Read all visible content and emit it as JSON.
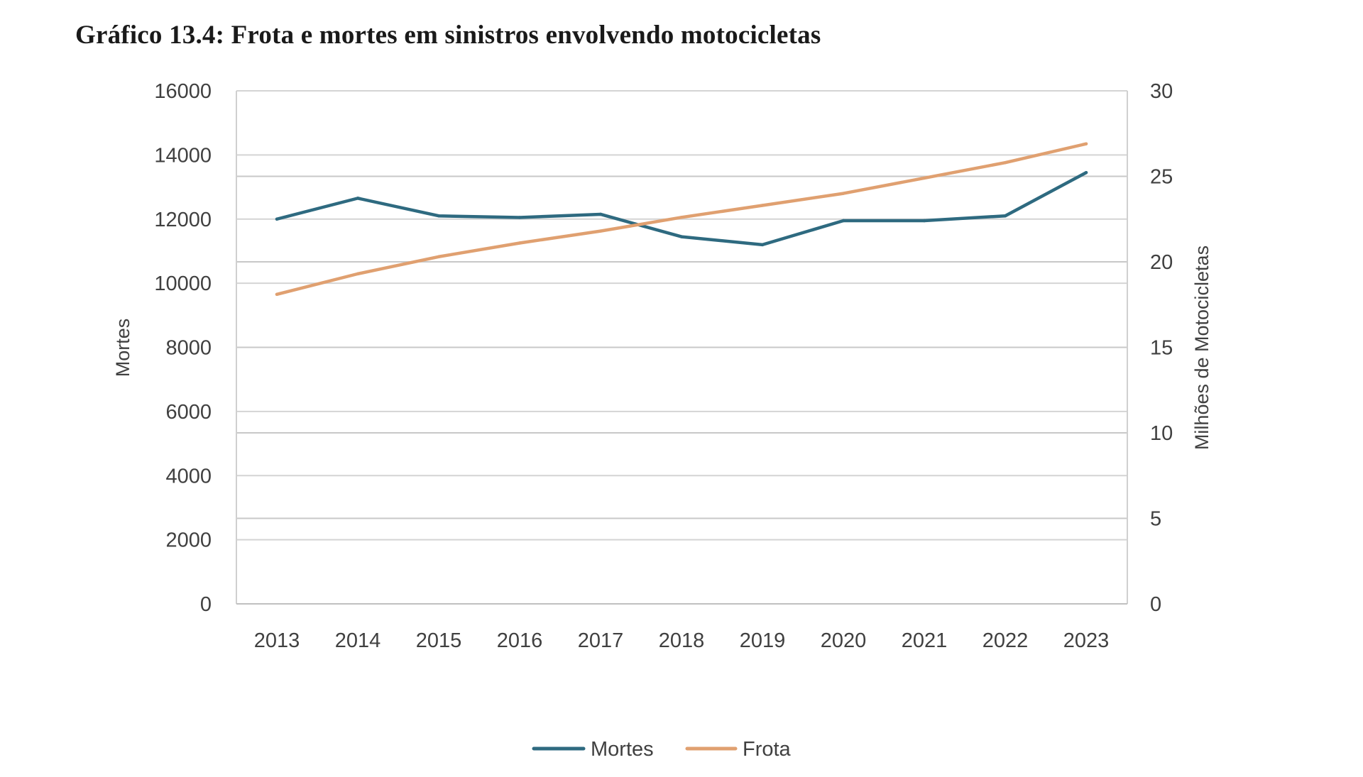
{
  "chart_data": {
    "type": "line",
    "title": "Gráfico 13.4: Frota e mortes em sinistros envolvendo motocicletas",
    "categories": [
      "2013",
      "2014",
      "2015",
      "2016",
      "2017",
      "2018",
      "2019",
      "2020",
      "2021",
      "2022",
      "2023"
    ],
    "y_left": {
      "label": "Mortes",
      "range": [
        0,
        16000
      ],
      "ticks": [
        "0",
        "2000",
        "4000",
        "6000",
        "8000",
        "10000",
        "12000",
        "14000",
        "16000"
      ]
    },
    "y_right": {
      "label": "Milhões de Motocicletas",
      "range": [
        0,
        30
      ],
      "ticks": [
        "0",
        "5",
        "10",
        "15",
        "20",
        "25",
        "30"
      ]
    },
    "series": [
      {
        "name": "Mortes",
        "axis": "left",
        "color": "#2e6a80",
        "values": [
          12000,
          12650,
          12100,
          12050,
          12150,
          11450,
          11200,
          11950,
          11950,
          12100,
          13450
        ]
      },
      {
        "name": "Frota",
        "axis": "right",
        "color": "#e0a070",
        "values": [
          18.1,
          19.3,
          20.3,
          21.1,
          21.8,
          22.6,
          23.3,
          24.0,
          24.9,
          25.8,
          26.9
        ]
      }
    ],
    "legend": {
      "position": "bottom",
      "items": [
        "Mortes",
        "Frota"
      ]
    },
    "grid": true
  }
}
